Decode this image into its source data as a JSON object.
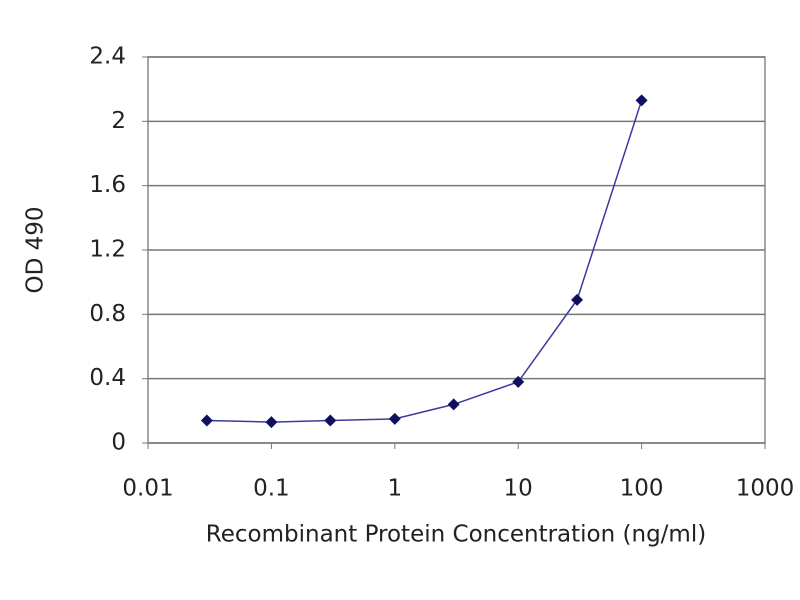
{
  "chart_data": {
    "type": "line",
    "x_label": "Recombinant Protein Concentration (ng/ml)",
    "y_label": "OD 490",
    "x": [
      0.03,
      0.1,
      0.3,
      1,
      3,
      10,
      30,
      100
    ],
    "series": [
      {
        "color": "#3a3a9c",
        "values": [
          0.14,
          0.13,
          0.14,
          0.15,
          0.24,
          0.38,
          0.89,
          2.13
        ]
      }
    ],
    "xlim": [
      0.01,
      1000
    ],
    "xticks": [
      0.01,
      0.1,
      1,
      10,
      100,
      1000
    ],
    "xscale": "log",
    "ylim": [
      0,
      2.4
    ],
    "yticks": [
      0,
      0.4,
      0.8,
      1.2,
      1.6,
      2,
      2.4
    ],
    "grid": true
  }
}
